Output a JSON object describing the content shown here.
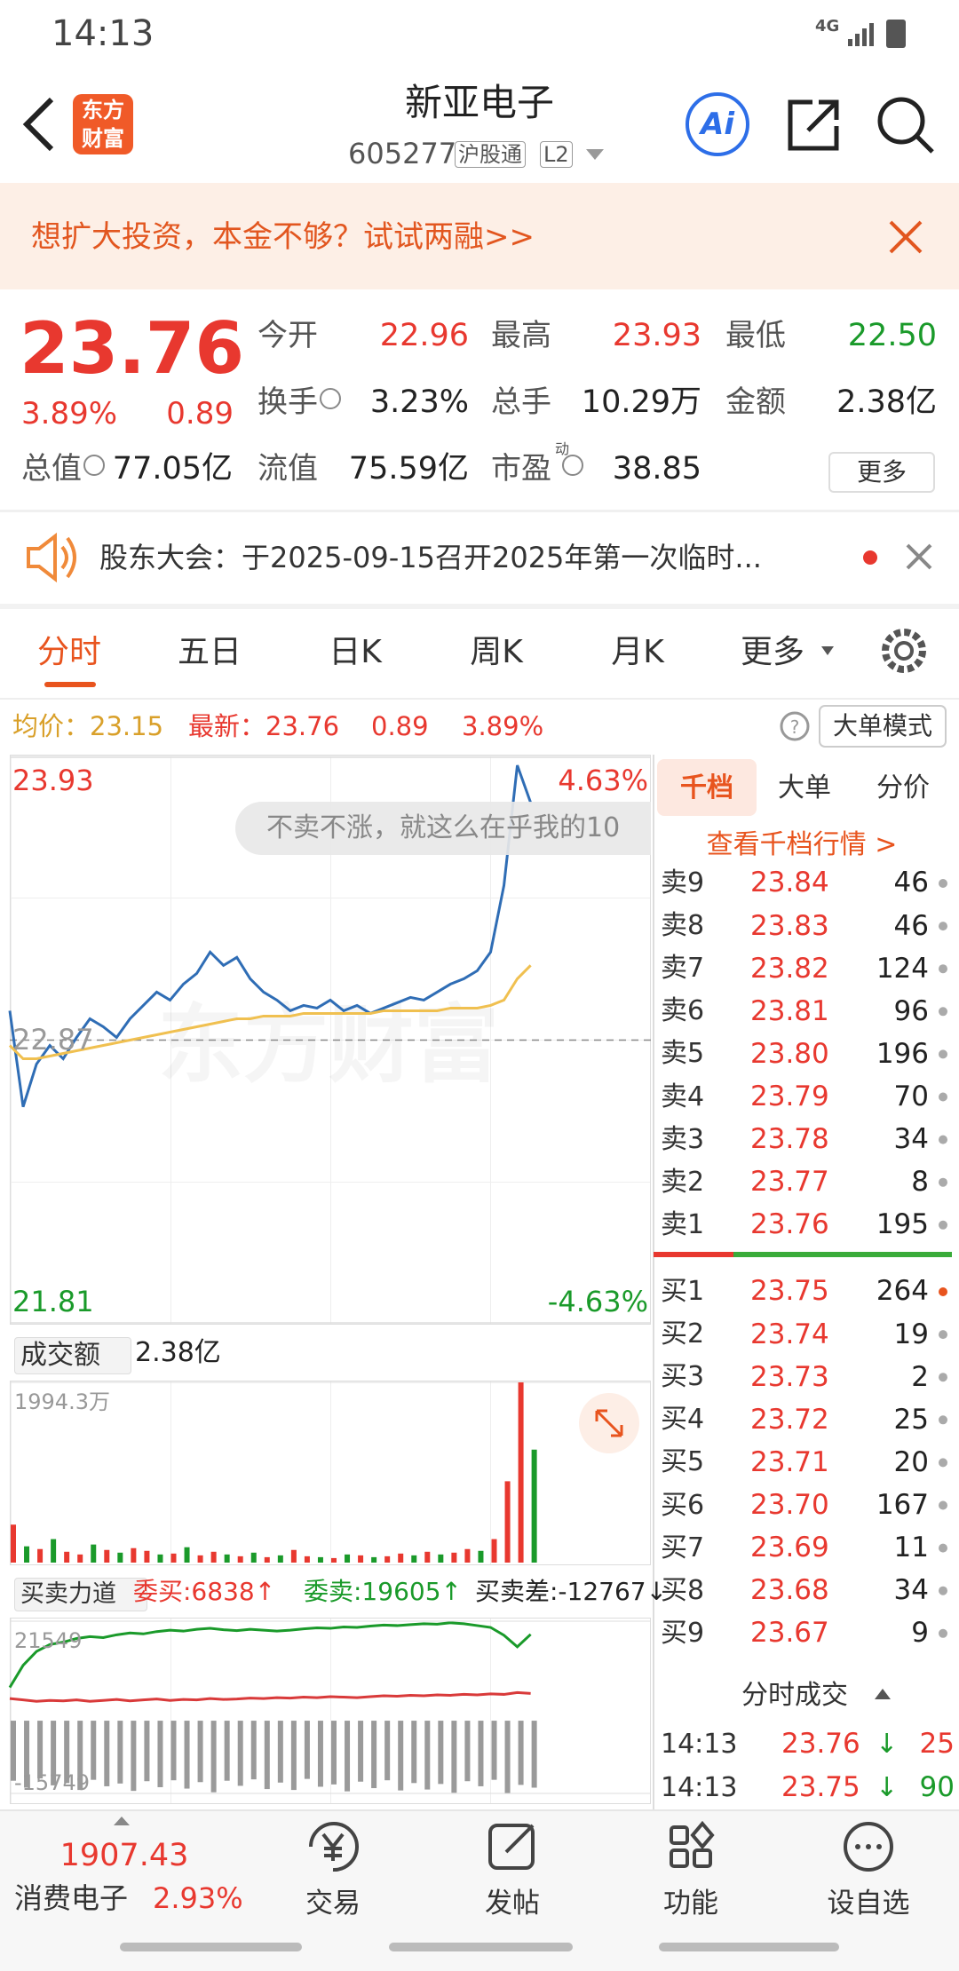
{
  "status_bar": {
    "time": "14:13",
    "network": "4G"
  },
  "header": {
    "logo": [
      "东方",
      "财富"
    ],
    "title": "新亚电子",
    "code": "605277",
    "tags": [
      "沪股通",
      "L2"
    ],
    "ai": "Ai"
  },
  "banner": {
    "text": "想扩大投资，本金不够？试试两融>>"
  },
  "quote": {
    "price": "23.76",
    "change_percent": "3.89%",
    "change": "0.89",
    "stats": [
      {
        "label": "今开",
        "value": "22.96",
        "color": "#e8382f"
      },
      {
        "label": "最高",
        "value": "23.93",
        "color": "#e8382f"
      },
      {
        "label": "最低",
        "value": "22.50",
        "color": "#1a9a2a"
      },
      {
        "label": "换手",
        "value": "3.23%",
        "color": "#222"
      },
      {
        "label": "总手",
        "value": "10.29万",
        "color": "#222"
      },
      {
        "label": "金额",
        "value": "2.38亿",
        "color": "#222"
      },
      {
        "label": "总值",
        "value": "77.05亿",
        "color": "#222"
      },
      {
        "label": "流值",
        "value": "75.59亿",
        "color": "#222"
      },
      {
        "label": "市盈",
        "note": "动",
        "value": "38.85",
        "color": "#222"
      }
    ],
    "more": "更多"
  },
  "notice": {
    "text": "股东大会：于2025-09-15召开2025年第一次临时..."
  },
  "tabs": [
    "分时",
    "五日",
    "日K",
    "周K",
    "月K",
    "更多"
  ],
  "summary": {
    "average": "均价：23.15",
    "latest": "最新：23.76",
    "change": "0.89",
    "change_percent": "3.89%",
    "mode_button": "大单模式"
  },
  "toast": "不卖不涨，就这么在乎我的10",
  "watermark": "东方财富",
  "volume_header": {
    "selector": "成交额",
    "total": "2.38亿"
  },
  "strength_header": {
    "selector": "买卖力道",
    "bid": "委买:6838↑",
    "ask": "委卖:19605↑",
    "diff": "买卖差:-12767↓"
  },
  "order_book": {
    "tabs": [
      "千档",
      "大单",
      "分价"
    ],
    "link": "查看千档行情 >",
    "asks": [
      {
        "level": "卖9",
        "price": "23.84",
        "volume": "46"
      },
      {
        "level": "卖8",
        "price": "23.83",
        "volume": "46"
      },
      {
        "level": "卖7",
        "price": "23.82",
        "volume": "124"
      },
      {
        "level": "卖6",
        "price": "23.81",
        "volume": "96"
      },
      {
        "level": "卖5",
        "price": "23.80",
        "volume": "196"
      },
      {
        "level": "卖4",
        "price": "23.79",
        "volume": "70"
      },
      {
        "level": "卖3",
        "price": "23.78",
        "volume": "34"
      },
      {
        "level": "卖2",
        "price": "23.77",
        "volume": "8"
      },
      {
        "level": "卖1",
        "price": "23.76",
        "volume": "195"
      }
    ],
    "bids": [
      {
        "level": "买1",
        "price": "23.75",
        "volume": "264"
      },
      {
        "level": "买2",
        "price": "23.74",
        "volume": "19"
      },
      {
        "level": "买3",
        "price": "23.73",
        "volume": "2"
      },
      {
        "level": "买4",
        "price": "23.72",
        "volume": "25"
      },
      {
        "level": "买5",
        "price": "23.71",
        "volume": "20"
      },
      {
        "level": "买6",
        "price": "23.70",
        "volume": "167"
      },
      {
        "level": "买7",
        "price": "23.69",
        "volume": "11"
      },
      {
        "level": "买8",
        "price": "23.68",
        "volume": "34"
      },
      {
        "level": "买9",
        "price": "23.67",
        "volume": "9"
      }
    ],
    "trades_title": "分时成交",
    "trades": [
      {
        "time": "14:13",
        "price": "23.76",
        "direction": "↓",
        "volume": "25",
        "color": "#e8382f"
      },
      {
        "time": "14:13",
        "price": "23.75",
        "direction": "↓",
        "volume": "90",
        "color": "#1a9a2a"
      }
    ]
  },
  "bottom_nav": {
    "index_value": "1907.43",
    "index_name": "消费电子",
    "index_change": "2.93%",
    "items": [
      "交易",
      "发帖",
      "功能",
      "设自选"
    ]
  },
  "chart_data": [
    {
      "type": "line",
      "x": [
        0,
        5,
        10,
        15,
        20,
        25,
        30,
        35,
        40,
        45,
        50,
        55,
        60,
        65,
        70,
        75,
        80,
        85,
        90,
        95,
        100,
        105,
        110,
        115,
        120,
        125,
        130,
        135,
        140,
        145,
        150,
        155,
        160,
        165,
        170,
        175,
        180,
        185,
        190,
        195
      ],
      "xlim": [
        0,
        240
      ],
      "ylim": [
        21.81,
        23.93
      ],
      "yticks": [
        23.93,
        22.87,
        21.81
      ],
      "y2lim": [
        -4.63,
        4.63
      ],
      "y2ticks": [
        {
          "value": 4.63,
          "label": "4.63%"
        },
        {
          "value": -4.63,
          "label": "-4.63%"
        }
      ],
      "series": [
        {
          "color": "#2f6db5",
          "values": [
            22.98,
            22.62,
            22.78,
            22.85,
            22.8,
            22.88,
            22.95,
            22.92,
            22.88,
            22.95,
            23.0,
            23.05,
            23.02,
            23.08,
            23.12,
            23.2,
            23.15,
            23.18,
            23.1,
            23.05,
            23.02,
            22.98,
            23.0,
            22.99,
            23.02,
            22.98,
            23.0,
            22.97,
            22.99,
            23.01,
            23.03,
            23.02,
            23.05,
            23.08,
            23.1,
            23.13,
            23.2,
            23.45,
            23.9,
            23.76
          ]
        },
        {
          "color": "#f0c050",
          "values": [
            22.85,
            22.8,
            22.8,
            22.81,
            22.82,
            22.83,
            22.84,
            22.85,
            22.86,
            22.87,
            22.88,
            22.89,
            22.9,
            22.91,
            22.92,
            22.93,
            22.94,
            22.95,
            22.95,
            22.96,
            22.96,
            22.96,
            22.97,
            22.97,
            22.97,
            22.97,
            22.97,
            22.97,
            22.98,
            22.98,
            22.98,
            22.98,
            22.98,
            22.99,
            22.99,
            22.99,
            23.0,
            23.02,
            23.1,
            23.15
          ]
        }
      ]
    },
    {
      "type": "bar",
      "x": [
        0,
        5,
        10,
        15,
        20,
        25,
        30,
        35,
        40,
        45,
        50,
        55,
        60,
        65,
        70,
        75,
        80,
        85,
        90,
        95,
        100,
        105,
        110,
        115,
        120,
        125,
        130,
        135,
        140,
        145,
        150,
        155,
        160,
        165,
        170,
        175,
        180,
        185,
        190,
        195
      ],
      "xlim": [
        0,
        240
      ],
      "ylim": [
        0,
        1994.3
      ],
      "yticks": [
        {
          "value": 1994.3,
          "label": "1994.3万"
        }
      ],
      "values": [
        420,
        180,
        150,
        260,
        120,
        90,
        200,
        140,
        110,
        160,
        130,
        90,
        100,
        170,
        80,
        120,
        90,
        70,
        110,
        60,
        80,
        140,
        70,
        60,
        50,
        90,
        80,
        60,
        70,
        100,
        80,
        120,
        90,
        110,
        150,
        130,
        260,
        900,
        1994.3,
        1250
      ],
      "colors": [
        "#e8382f",
        "#1a9a2a",
        "#e8382f",
        "#1a9a2a",
        "#e8382f",
        "#e8382f",
        "#1a9a2a",
        "#e8382f",
        "#1a9a2a",
        "#e8382f",
        "#e8382f",
        "#1a9a2a",
        "#e8382f",
        "#1a9a2a",
        "#e8382f",
        "#e8382f",
        "#1a9a2a",
        "#e8382f",
        "#1a9a2a",
        "#e8382f",
        "#1a9a2a",
        "#e8382f",
        "#e8382f",
        "#1a9a2a",
        "#e8382f",
        "#1a9a2a",
        "#e8382f",
        "#1a9a2a",
        "#e8382f",
        "#e8382f",
        "#1a9a2a",
        "#e8382f",
        "#1a9a2a",
        "#e8382f",
        "#e8382f",
        "#1a9a2a",
        "#e8382f",
        "#e8382f",
        "#e8382f",
        "#1a9a2a"
      ]
    },
    {
      "type": "line",
      "x": [
        0,
        5,
        10,
        15,
        20,
        25,
        30,
        35,
        40,
        45,
        50,
        55,
        60,
        65,
        70,
        75,
        80,
        85,
        90,
        95,
        100,
        105,
        110,
        115,
        120,
        125,
        130,
        135,
        140,
        145,
        150,
        155,
        160,
        165,
        170,
        175,
        180,
        185,
        190,
        195
      ],
      "xlim": [
        0,
        240
      ],
      "ylim": [
        -15749,
        21549
      ],
      "yticks": [
        21549,
        -15749
      ],
      "series": [
        {
          "color": "#1a9a2a",
          "values": [
            7200,
            12000,
            15000,
            16500,
            17000,
            17800,
            18200,
            18000,
            18600,
            19000,
            18800,
            19300,
            19600,
            19400,
            19800,
            20000,
            19700,
            19500,
            19800,
            19600,
            19400,
            19600,
            19900,
            20100,
            20000,
            20300,
            20200,
            20500,
            20700,
            20600,
            20800,
            21000,
            20900,
            21200,
            21000,
            20600,
            20200,
            18500,
            16000,
            18700
          ]
        },
        {
          "color": "#d93a3a",
          "values": [
            4800,
            4500,
            4200,
            4400,
            4300,
            4500,
            4200,
            4400,
            4600,
            4300,
            4500,
            4700,
            4400,
            4600,
            4500,
            4800,
            4600,
            4700,
            4900,
            4800,
            5000,
            4900,
            5100,
            5000,
            5200,
            5100,
            5000,
            5200,
            5400,
            5300,
            5500,
            5400,
            5600,
            5500,
            5700,
            5600,
            5800,
            5700,
            6100,
            5900
          ]
        }
      ],
      "bars": {
        "color": "#9a9a9a",
        "values": [
          -13000,
          -14500,
          -12500,
          -14000,
          -13500,
          -15000,
          -12800,
          -14200,
          -13600,
          -15200,
          -13100,
          -14400,
          -12900,
          -14700,
          -13300,
          -15500,
          -13000,
          -14100,
          -12700,
          -14800,
          -13400,
          -15000,
          -12600,
          -14300,
          -13800,
          -15300,
          -13200,
          -14600,
          -12900,
          -15100,
          -13500,
          -14900,
          -13700,
          -15600,
          -13100,
          -14200,
          -12800,
          -15749,
          -13900,
          -14500
        ]
      }
    }
  ]
}
